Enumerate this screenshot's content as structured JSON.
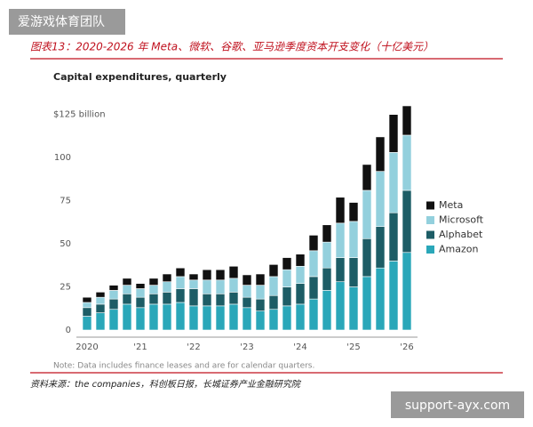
{
  "watermark": "爱游戏体育团队",
  "header_title": "图表13：2020-2026 年 Meta、微软、谷歌、亚马逊季度资本开支变化（十亿美元）",
  "source": "资料来源：the companies，科创板日报，长城证券产业金融研究院",
  "footer_link": "support-ayx.com",
  "chart_data": {
    "type": "stacked_bar",
    "title": "Capital expenditures, quarterly",
    "note": "Note: Data includes finance leases and are for calendar quarters.",
    "categories": [
      "2020",
      null,
      null,
      null,
      "'21",
      null,
      null,
      null,
      "'22",
      null,
      null,
      null,
      "'23",
      null,
      null,
      null,
      "'24",
      null,
      null,
      null,
      "'25",
      null,
      null,
      null,
      "'26"
    ],
    "series": [
      {
        "name": "Amazon",
        "color": "#2aa7b9",
        "values": [
          8,
          10,
          12,
          15,
          13,
          15,
          15,
          16,
          14,
          14,
          14,
          15,
          13,
          11,
          12,
          14,
          15,
          18,
          23,
          28,
          25,
          31,
          36,
          40,
          45
        ]
      },
      {
        "name": "Alphabet",
        "color": "#1d5d66",
        "values": [
          5,
          5,
          6,
          6,
          6,
          6,
          7,
          8,
          10,
          7,
          7,
          7,
          6,
          7,
          8,
          11,
          12,
          13,
          13,
          14,
          17,
          22,
          24,
          28,
          36
        ]
      },
      {
        "name": "Microsoft",
        "color": "#93d0dd",
        "values": [
          3,
          4,
          5,
          5,
          5,
          5,
          6,
          7,
          5,
          8,
          8,
          8,
          7,
          8,
          11,
          10,
          10,
          15,
          15,
          20,
          21,
          28,
          32,
          35,
          32
        ]
      },
      {
        "name": "Meta",
        "color": "#111111",
        "values": [
          3,
          3,
          3,
          4,
          3,
          4,
          4.5,
          5,
          3.5,
          6,
          6,
          7,
          6,
          6.5,
          7,
          7,
          7,
          9,
          10,
          15,
          11,
          15,
          20,
          22,
          17
        ]
      }
    ],
    "ylim": [
      0,
      130
    ],
    "yticks": [
      0,
      25,
      50,
      75,
      100,
      {
        "value": 125,
        "label": "$125 billion"
      }
    ],
    "grid": false,
    "legend": "right"
  }
}
